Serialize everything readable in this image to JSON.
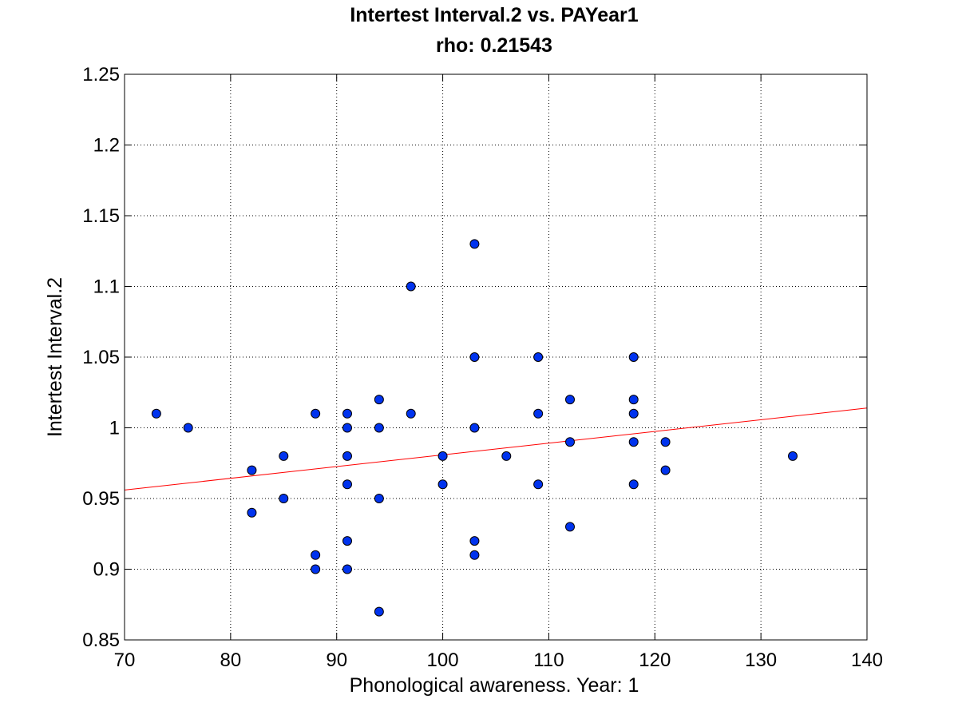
{
  "chart_data": {
    "type": "scatter",
    "title": "Intertest Interval.2 vs. PAYear1",
    "subtitle": "rho: 0.21543",
    "xlabel": "Phonological awareness. Year: 1",
    "ylabel": "Intertest Interval.2",
    "xlim": [
      70,
      140
    ],
    "ylim": [
      0.85,
      1.25
    ],
    "xticks": [
      70,
      80,
      90,
      100,
      110,
      120,
      130,
      140
    ],
    "yticks": [
      0.85,
      0.9,
      0.95,
      1,
      1.05,
      1.1,
      1.15,
      1.2,
      1.25
    ],
    "xtick_labels": [
      "70",
      "80",
      "90",
      "100",
      "110",
      "120",
      "130",
      "140"
    ],
    "ytick_labels": [
      "0.85",
      "0.9",
      "0.95",
      "1",
      "1.05",
      "1.1",
      "1.15",
      "1.2",
      "1.25"
    ],
    "grid": true,
    "marker_color": "#0033ee",
    "fit_line_color": "#ff0000",
    "points": [
      [
        73,
        1.01
      ],
      [
        76,
        1.0
      ],
      [
        82,
        0.97
      ],
      [
        82,
        0.94
      ],
      [
        85,
        0.98
      ],
      [
        85,
        0.95
      ],
      [
        88,
        1.01
      ],
      [
        88,
        0.91
      ],
      [
        88,
        0.9
      ],
      [
        91,
        1.01
      ],
      [
        91,
        1.0
      ],
      [
        91,
        0.98
      ],
      [
        91,
        0.96
      ],
      [
        91,
        0.92
      ],
      [
        91,
        0.9
      ],
      [
        94,
        1.02
      ],
      [
        94,
        1.0
      ],
      [
        94,
        0.95
      ],
      [
        94,
        0.87
      ],
      [
        97,
        1.1
      ],
      [
        97,
        1.01
      ],
      [
        100,
        0.98
      ],
      [
        100,
        0.96
      ],
      [
        103,
        1.13
      ],
      [
        103,
        1.05
      ],
      [
        103,
        1.0
      ],
      [
        103,
        0.92
      ],
      [
        103,
        0.91
      ],
      [
        106,
        0.98
      ],
      [
        109,
        1.05
      ],
      [
        109,
        1.01
      ],
      [
        109,
        0.96
      ],
      [
        112,
        1.02
      ],
      [
        112,
        0.99
      ],
      [
        112,
        0.93
      ],
      [
        118,
        1.05
      ],
      [
        118,
        1.02
      ],
      [
        118,
        1.01
      ],
      [
        118,
        0.99
      ],
      [
        118,
        0.96
      ],
      [
        121,
        0.99
      ],
      [
        121,
        0.97
      ],
      [
        133,
        0.98
      ]
    ],
    "fit_line": [
      [
        70,
        0.956
      ],
      [
        140,
        1.014
      ]
    ]
  }
}
